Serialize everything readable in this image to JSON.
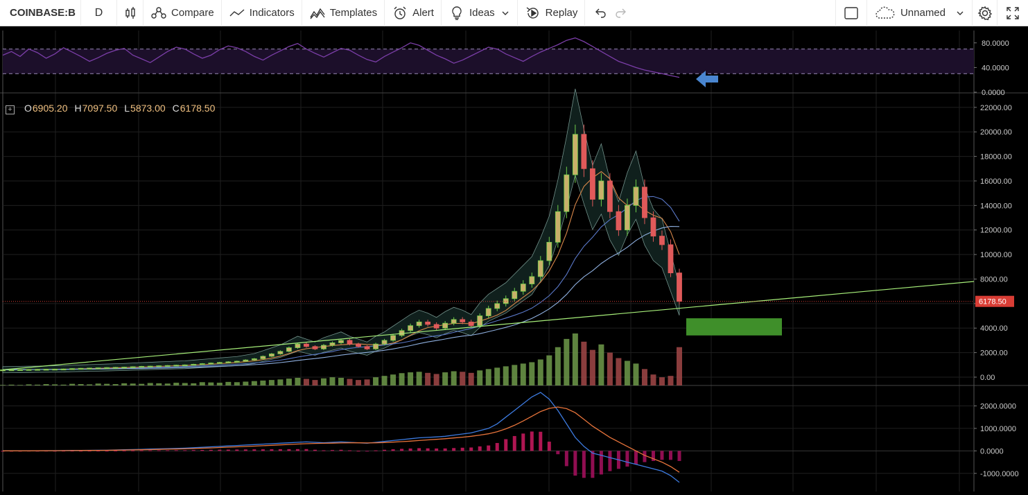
{
  "toolbar": {
    "symbol": "COINBASE:B",
    "interval": "D",
    "compare": "Compare",
    "indicators": "Indicators",
    "templates": "Templates",
    "alert": "Alert",
    "ideas": "Ideas",
    "replay": "Replay",
    "layout_name": "Unnamed"
  },
  "ohlc": {
    "o_label": "O",
    "o": "6905.20",
    "h_label": "H",
    "h": "7097.50",
    "l_label": "L",
    "l": "5873.00",
    "c_label": "C",
    "c": "6178.50"
  },
  "colors": {
    "up": "#6fcf4a",
    "down": "#e05a5a",
    "rsi": "#7b3ea8",
    "band": "#9fc9c0",
    "trend": "#a8f07a",
    "target_box": "#3f8f2a",
    "price_tag": "#d93d35"
  },
  "chart_data": [
    {
      "type": "line",
      "name": "rsi-pane",
      "yticks": [
        "80.0000",
        "40.0000",
        "0.0000"
      ],
      "ylim": [
        0,
        100
      ],
      "bands": [
        70,
        30
      ],
      "values": [
        60,
        66,
        58,
        70,
        64,
        55,
        62,
        72,
        65,
        58,
        50,
        56,
        63,
        68,
        71,
        60,
        54,
        48,
        57,
        66,
        73,
        70,
        62,
        55,
        60,
        69,
        75,
        72,
        66,
        58,
        52,
        60,
        67,
        74,
        79,
        70,
        63,
        57,
        64,
        71,
        68,
        60,
        53,
        49,
        58,
        65,
        72,
        80,
        76,
        68,
        60,
        54,
        47,
        52,
        59,
        66,
        73,
        70,
        62,
        56,
        50,
        58,
        65,
        71,
        77,
        84,
        88,
        82,
        74,
        66,
        58,
        50,
        45,
        40,
        36,
        33,
        30,
        27,
        24
      ],
      "annotation": "arrow-left"
    },
    {
      "type": "candlestick",
      "name": "price-pane",
      "yticks": [
        "22000.00",
        "20000.00",
        "18000.00",
        "16000.00",
        "14000.00",
        "12000.00",
        "10000.00",
        "8000.00",
        "6000.00",
        "4000.00",
        "2000.00",
        "0.00"
      ],
      "ylim": [
        0,
        22500
      ],
      "last_price": "6178.50",
      "closes": [
        600,
        610,
        620,
        630,
        640,
        650,
        660,
        670,
        700,
        720,
        740,
        760,
        780,
        800,
        820,
        850,
        880,
        900,
        930,
        950,
        980,
        1000,
        1050,
        1100,
        1150,
        1200,
        1250,
        1300,
        1400,
        1500,
        1700,
        1900,
        2100,
        2400,
        2700,
        2500,
        2300,
        2600,
        2800,
        3000,
        2700,
        2500,
        2300,
        2700,
        3000,
        3400,
        3800,
        4200,
        4500,
        4300,
        4000,
        4400,
        4700,
        4500,
        4200,
        5000,
        5600,
        6000,
        6400,
        7000,
        7600,
        8200,
        9500,
        11000,
        13500,
        16500,
        19800,
        17000,
        14500,
        16000,
        13500,
        12000,
        14000,
        15500,
        13000,
        11500,
        10800,
        8500,
        6178
      ],
      "trendline": {
        "x_start": 0,
        "y_start": 600,
        "x_end": 1,
        "y_end": 7800
      },
      "target_zone": {
        "y_low": 3400,
        "y_high": 4800
      },
      "volume": [
        2,
        3,
        2,
        4,
        3,
        5,
        4,
        3,
        6,
        5,
        4,
        7,
        6,
        5,
        8,
        7,
        6,
        9,
        8,
        7,
        10,
        9,
        8,
        12,
        11,
        10,
        13,
        12,
        14,
        16,
        18,
        20,
        22,
        25,
        28,
        24,
        20,
        26,
        30,
        28,
        24,
        20,
        22,
        30,
        35,
        40,
        45,
        48,
        50,
        46,
        42,
        48,
        52,
        50,
        46,
        55,
        60,
        65,
        70,
        75,
        80,
        85,
        95,
        110,
        140,
        170,
        190,
        160,
        130,
        150,
        120,
        100,
        90,
        80,
        60,
        40,
        30,
        35,
        140
      ]
    },
    {
      "type": "line",
      "name": "macd-pane",
      "yticks": [
        "2000.0000",
        "1000.0000",
        "0.0000",
        "-1000.0000"
      ],
      "ylim": [
        -1500,
        2600
      ],
      "macd": [
        0,
        0,
        0,
        5,
        5,
        10,
        10,
        15,
        20,
        20,
        25,
        30,
        30,
        40,
        50,
        60,
        70,
        80,
        90,
        100,
        110,
        120,
        140,
        160,
        180,
        200,
        220,
        240,
        260,
        280,
        300,
        320,
        340,
        360,
        380,
        400,
        380,
        360,
        380,
        400,
        380,
        360,
        340,
        380,
        420,
        460,
        500,
        540,
        580,
        600,
        620,
        650,
        700,
        750,
        800,
        900,
        1000,
        1200,
        1500,
        1800,
        2100,
        2400,
        2600,
        2300,
        1800,
        1200,
        600,
        200,
        -100,
        -200,
        -300,
        -400,
        -500,
        -600,
        -700,
        -800,
        -900,
        -1100,
        -1400
      ],
      "signal": [
        0,
        0,
        0,
        0,
        3,
        5,
        8,
        10,
        14,
        17,
        20,
        24,
        27,
        32,
        38,
        44,
        50,
        58,
        66,
        74,
        82,
        92,
        104,
        118,
        132,
        148,
        164,
        180,
        196,
        212,
        230,
        248,
        266,
        284,
        302,
        320,
        330,
        336,
        344,
        352,
        358,
        358,
        354,
        360,
        372,
        390,
        410,
        434,
        460,
        488,
        514,
        542,
        575,
        610,
        650,
        700,
        760,
        850,
        980,
        1140,
        1330,
        1540,
        1750,
        1890,
        1950,
        1880,
        1700,
        1400,
        1100,
        850,
        600,
        400,
        200,
        0,
        -200,
        -350,
        -500,
        -700,
        -950
      ]
    }
  ]
}
